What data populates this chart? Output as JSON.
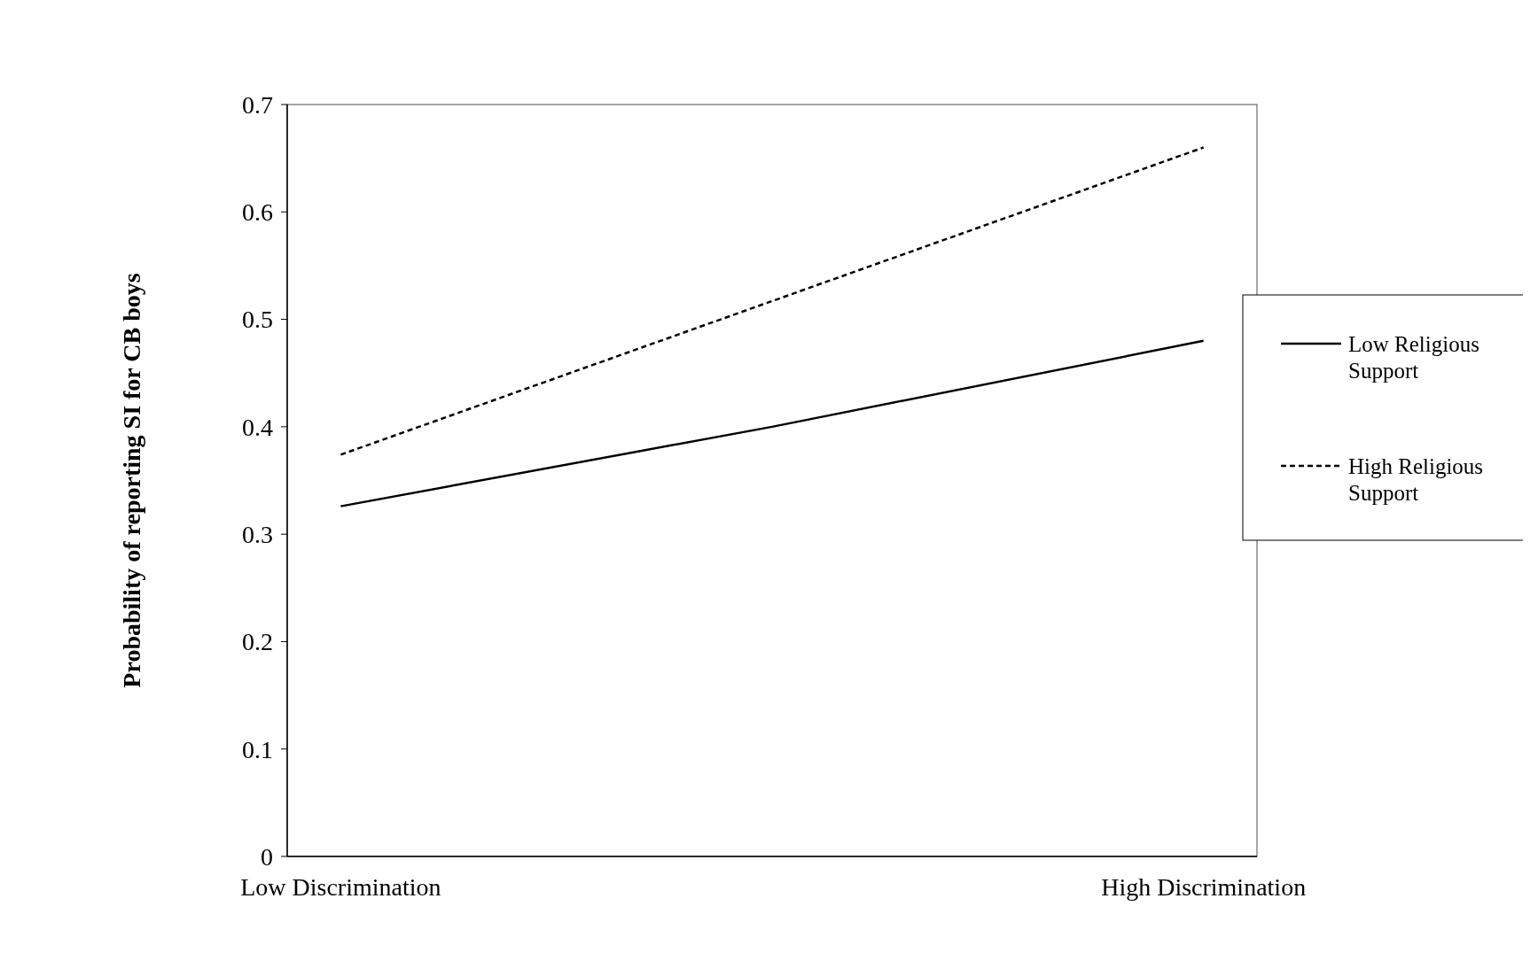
{
  "chart_data": {
    "type": "line",
    "ylabel": "Probability of reporting SI for CB boys",
    "categories": [
      "Low Discrimination",
      null,
      "High Discrimination"
    ],
    "series": [
      {
        "name": "Low Religious Support",
        "color": "#000000",
        "line_style": "solid",
        "values": [
          0.326,
          0.4,
          0.48
        ]
      },
      {
        "name": "High Religious Support",
        "color": "#000000",
        "line_style": "dashed",
        "values": [
          0.374,
          0.517,
          0.66
        ]
      }
    ],
    "ylim": [
      0,
      0.7
    ],
    "yticks": [
      0,
      0.1,
      0.2,
      0.3,
      0.4,
      0.5,
      0.6,
      0.7
    ],
    "grid": false,
    "legend": "right",
    "marker": "none"
  }
}
